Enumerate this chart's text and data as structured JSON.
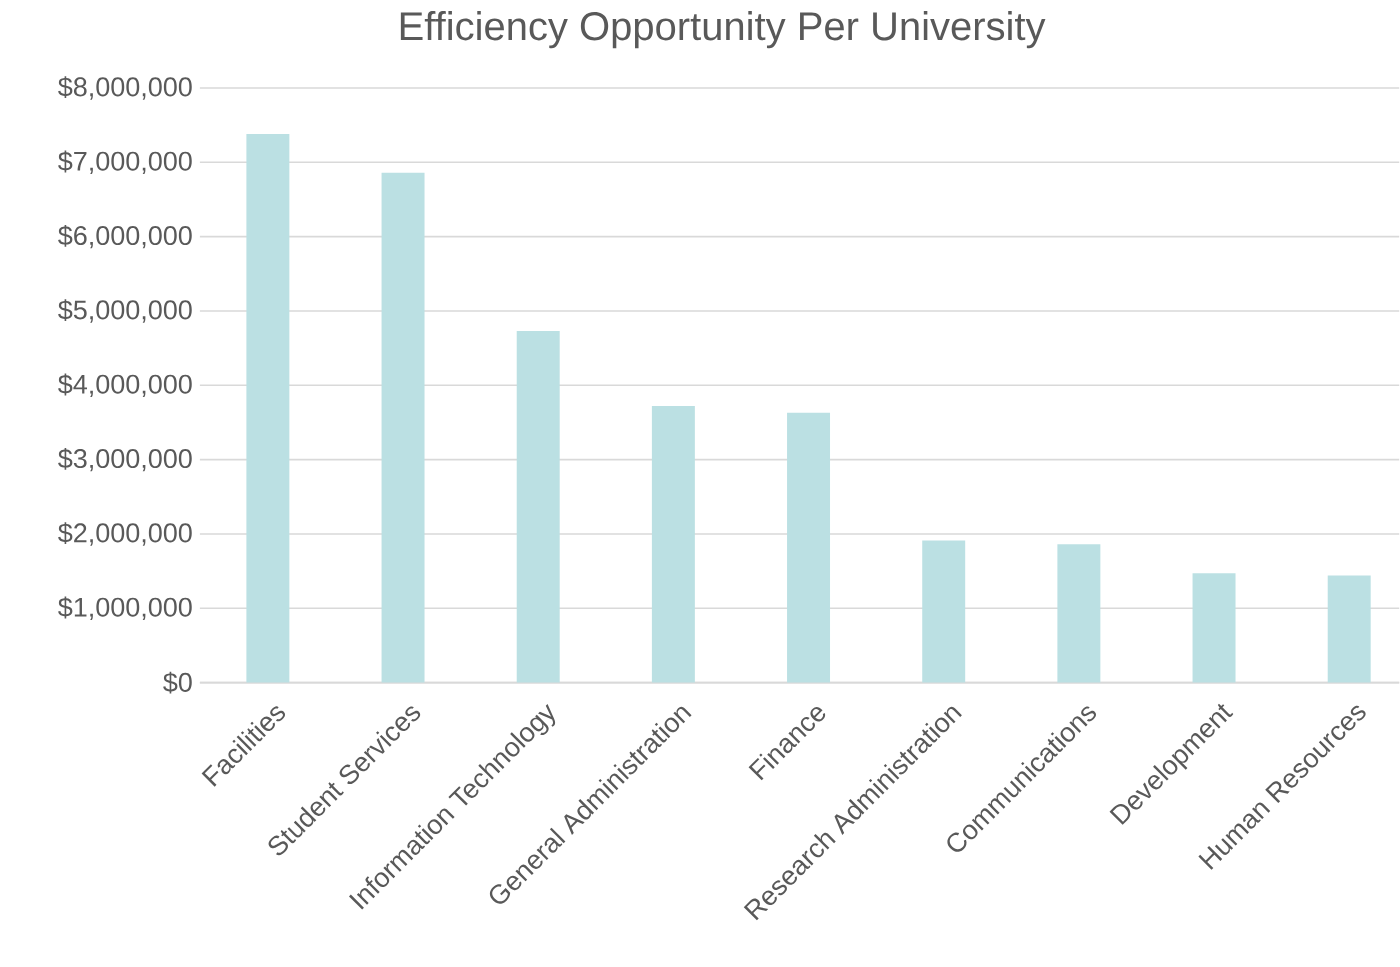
{
  "chart_data": {
    "type": "bar",
    "title": "Efficiency Opportunity Per University",
    "categories": [
      "Facilities",
      "Student Services",
      "Information Technology",
      "General Administration",
      "Finance",
      "Research Administration",
      "Communications",
      "Development",
      "Human Resources"
    ],
    "values": [
      7380000,
      6860000,
      4730000,
      3720000,
      3630000,
      1910000,
      1860000,
      1470000,
      1440000
    ],
    "color": "#bbe0e3",
    "ylim": [
      0,
      8000000
    ],
    "yticks": [
      {
        "value": 0,
        "label": "$0"
      },
      {
        "value": 1000000,
        "label": "$1,000,000"
      },
      {
        "value": 2000000,
        "label": "$2,000,000"
      },
      {
        "value": 3000000,
        "label": "$3,000,000"
      },
      {
        "value": 4000000,
        "label": "$4,000,000"
      },
      {
        "value": 5000000,
        "label": "$5,000,000"
      },
      {
        "value": 6000000,
        "label": "$6,000,000"
      },
      {
        "value": 7000000,
        "label": "$7,000,000"
      },
      {
        "value": 8000000,
        "label": "$8,000,000"
      }
    ],
    "grid": "y"
  }
}
